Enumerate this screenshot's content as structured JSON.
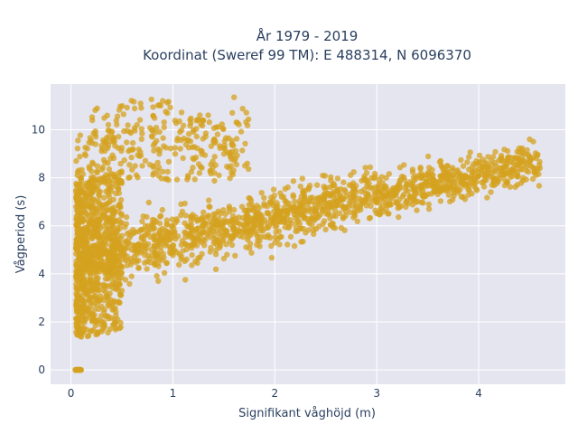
{
  "chart_data": {
    "type": "scatter",
    "title_line1": "År 1979 - 2019",
    "title_line2": "Koordinat (Sweref 99 TM): E 488314, N 6096370",
    "xlabel": "Signifikant våghöjd (m)",
    "ylabel": "Vågperiod (s)",
    "xlim": [
      -0.2,
      4.85
    ],
    "ylim": [
      -0.6,
      11.9
    ],
    "xticks": [
      0,
      1,
      2,
      3,
      4
    ],
    "yticks": [
      0,
      2,
      4,
      6,
      8,
      10
    ],
    "grid": true,
    "marker_color": "#D4A21F",
    "plot_background": "#E5E5F0",
    "n_points": 2600,
    "distribution_note": "Dense band rising from ~(0.05, 1.5-8) to ~(4.5, 9.5); core slope T ≈ 4.5 + 1.0·H; sparse cloud 0.2-1.7 m at 8-11.4 s; small cluster at (0.05, 0) ",
    "sample_points": [
      {
        "x": 0.05,
        "y": 0
      },
      {
        "x": 0.07,
        "y": 0
      },
      {
        "x": 0.1,
        "y": 1.6
      },
      {
        "x": 0.1,
        "y": 7.9
      },
      {
        "x": 0.3,
        "y": 4.2
      },
      {
        "x": 0.5,
        "y": 3.3
      },
      {
        "x": 0.9,
        "y": 11.2
      },
      {
        "x": 1.0,
        "y": 5.0
      },
      {
        "x": 1.6,
        "y": 11.35
      },
      {
        "x": 2.0,
        "y": 6.3
      },
      {
        "x": 3.0,
        "y": 7.4
      },
      {
        "x": 4.0,
        "y": 8.6
      },
      {
        "x": 4.5,
        "y": 9.6
      },
      {
        "x": 4.6,
        "y": 8.4
      }
    ]
  }
}
